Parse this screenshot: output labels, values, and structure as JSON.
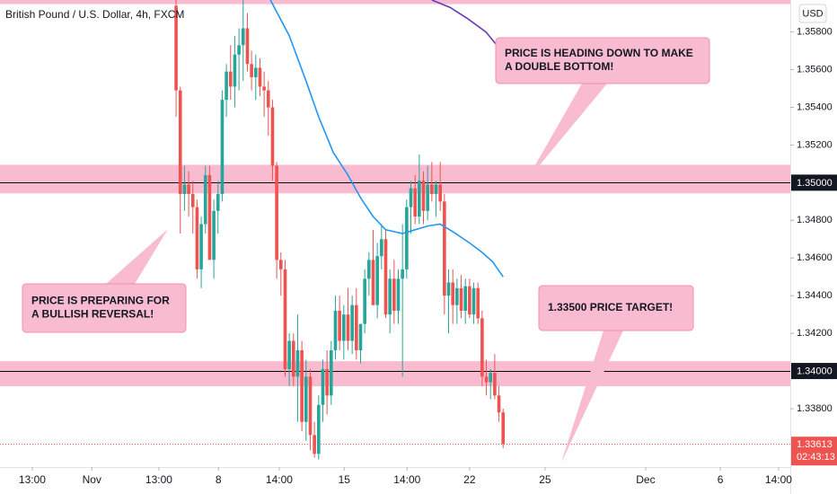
{
  "chart_data": {
    "type": "candlestick",
    "title": "British Pound / U.S. Dollar, 4h, FXCM",
    "currency": "USD",
    "x": [
      0,
      1,
      2,
      3,
      4,
      5,
      6,
      7,
      8,
      9,
      10,
      11,
      12,
      13,
      14,
      15,
      16,
      17,
      18,
      19,
      20,
      21,
      22,
      23,
      24,
      25,
      26,
      27,
      28,
      29,
      30,
      31,
      32,
      33,
      34,
      35,
      36,
      37,
      38,
      39,
      40,
      41,
      42,
      43,
      44,
      45,
      46,
      47,
      48,
      49,
      50,
      51,
      52,
      53,
      54,
      55,
      56,
      57,
      58,
      59,
      60,
      61,
      62,
      63,
      64,
      65,
      66,
      67,
      68,
      69,
      70,
      71,
      72,
      73,
      74,
      75,
      76,
      77,
      78
    ],
    "open": [
      1.3594,
      1.3549,
      1.3494,
      1.3499,
      1.3494,
      1.3487,
      1.3454,
      1.3478,
      1.3504,
      1.3459,
      1.3485,
      1.3494,
      1.3544,
      1.3559,
      1.3551,
      1.3568,
      1.3573,
      1.3582,
      1.3563,
      1.3556,
      1.3561,
      1.3551,
      1.3549,
      1.354,
      1.3509,
      1.3459,
      1.3454,
      1.3401,
      1.3416,
      1.3397,
      1.3411,
      1.3373,
      1.3397,
      1.3366,
      1.3356,
      1.3382,
      1.3401,
      1.3387,
      1.3411,
      1.3432,
      1.3416,
      1.343,
      1.3416,
      1.3435,
      1.3411,
      1.3425,
      1.3449,
      1.3459,
      1.3435,
      1.3461,
      1.347,
      1.343,
      1.3449,
      1.3432,
      1.3449,
      1.3454,
      1.3487,
      1.3497,
      1.3482,
      1.3501,
      1.3485,
      1.3499,
      1.3494,
      1.3499,
      1.349,
      1.344,
      1.3447,
      1.3435,
      1.3444,
      1.3432,
      1.3445,
      1.343,
      1.3444,
      1.3428,
      1.3397,
      1.3394,
      1.3399,
      1.3387,
      1.3378
    ],
    "high": [
      1.3597,
      1.3551,
      1.3509,
      1.3506,
      1.3501,
      1.3491,
      1.3482,
      1.3509,
      1.3509,
      1.3491,
      1.3501,
      1.3549,
      1.3563,
      1.3573,
      1.3578,
      1.3582,
      1.3597,
      1.359,
      1.357,
      1.3568,
      1.3566,
      1.3559,
      1.3554,
      1.3544,
      1.3511,
      1.3463,
      1.3459,
      1.342,
      1.342,
      1.343,
      1.3416,
      1.3406,
      1.3401,
      1.3373,
      1.3387,
      1.3406,
      1.3411,
      1.3416,
      1.344,
      1.344,
      1.3435,
      1.3444,
      1.344,
      1.3444,
      1.3425,
      1.3454,
      1.3463,
      1.3475,
      1.3468,
      1.3478,
      1.3475,
      1.3454,
      1.3459,
      1.3454,
      1.3478,
      1.3491,
      1.3501,
      1.3504,
      1.3515,
      1.3506,
      1.3509,
      1.3511,
      1.3501,
      1.3511,
      1.3494,
      1.3454,
      1.3454,
      1.3449,
      1.3451,
      1.3449,
      1.3449,
      1.3447,
      1.3447,
      1.3432,
      1.3406,
      1.3401,
      1.3409,
      1.3392,
      1.338
    ],
    "low": [
      1.3535,
      1.3473,
      1.3485,
      1.3482,
      1.3473,
      1.3449,
      1.3444,
      1.3473,
      1.3459,
      1.3449,
      1.3473,
      1.349,
      1.3535,
      1.3544,
      1.354,
      1.3549,
      1.3554,
      1.3559,
      1.3549,
      1.3544,
      1.3546,
      1.3535,
      1.3525,
      1.3501,
      1.3449,
      1.344,
      1.3397,
      1.3392,
      1.3392,
      1.3373,
      1.3368,
      1.3363,
      1.3358,
      1.3354,
      1.3353,
      1.3373,
      1.3377,
      1.3382,
      1.3406,
      1.3411,
      1.3406,
      1.3411,
      1.3409,
      1.3406,
      1.3404,
      1.342,
      1.344,
      1.3435,
      1.3428,
      1.3454,
      1.3428,
      1.342,
      1.3425,
      1.3425,
      1.3397,
      1.3449,
      1.3473,
      1.3478,
      1.3478,
      1.3478,
      1.348,
      1.349,
      1.3482,
      1.3485,
      1.343,
      1.342,
      1.3425,
      1.3425,
      1.3428,
      1.3425,
      1.3428,
      1.3425,
      1.3425,
      1.3392,
      1.3387,
      1.3385,
      1.3385,
      1.3373,
      1.3359
    ],
    "close": [
      1.3549,
      1.3494,
      1.3499,
      1.3494,
      1.3487,
      1.3454,
      1.3478,
      1.3504,
      1.3459,
      1.3485,
      1.3494,
      1.3544,
      1.3559,
      1.3551,
      1.3568,
      1.3573,
      1.3582,
      1.3563,
      1.3556,
      1.3561,
      1.3551,
      1.3549,
      1.354,
      1.3509,
      1.3459,
      1.3454,
      1.3401,
      1.3416,
      1.3397,
      1.3411,
      1.3373,
      1.3397,
      1.3366,
      1.3356,
      1.3382,
      1.3401,
      1.3387,
      1.3411,
      1.3432,
      1.3416,
      1.343,
      1.3416,
      1.3435,
      1.3411,
      1.3425,
      1.3449,
      1.3459,
      1.3435,
      1.3461,
      1.347,
      1.343,
      1.3449,
      1.3432,
      1.3449,
      1.3454,
      1.3487,
      1.3497,
      1.3482,
      1.3501,
      1.3485,
      1.3499,
      1.3494,
      1.3499,
      1.349,
      1.344,
      1.3447,
      1.3435,
      1.3444,
      1.3432,
      1.3445,
      1.343,
      1.3444,
      1.3428,
      1.3397,
      1.3394,
      1.3399,
      1.3387,
      1.3378,
      1.33613
    ],
    "up_color": "#26a69a",
    "down_color": "#ef5350",
    "lines": [
      {
        "color": "#2196f3",
        "x": [
          22.5,
          27,
          31,
          34,
          37.5,
          41,
          44,
          47,
          50,
          54,
          57,
          60,
          63,
          66,
          70,
          73,
          75.5,
          78
        ],
        "values": [
          1.3597,
          1.3578,
          1.3554,
          1.3535,
          1.3516,
          1.3504,
          1.3492,
          1.3482,
          1.3475,
          1.3473,
          1.3475,
          1.3477,
          1.3478,
          1.3474,
          1.3468,
          1.3463,
          1.3458,
          1.345
        ]
      },
      {
        "color": "#673ab7",
        "x": [
          61,
          65.4,
          69.6,
          73.9,
          76.5
        ],
        "values": [
          1.3597,
          1.3593,
          1.3587,
          1.358,
          1.3573
        ]
      }
    ],
    "zones": [
      [
        1.34943,
        1.35095
      ],
      [
        1.33919,
        1.34052
      ],
      [
        1.35948,
        1.3597
      ]
    ],
    "zone_color": "#f8bbd0",
    "levels": [
      {
        "value": 1.35,
        "label": "1.35000"
      },
      {
        "value": 1.34,
        "label": "1.34000"
      }
    ],
    "last_price": {
      "value": 1.33613,
      "label": "1.33613"
    },
    "countdown": "02:43:13",
    "annotations": [
      {
        "lines": [
          "PRICE IS HEADING DOWN TO MAKE",
          "A DOUBLE BOTTOM!"
        ]
      },
      {
        "lines": [
          "PRICE IS PREPARING FOR",
          "A BULLISH REVERSAL!"
        ]
      },
      {
        "lines": [
          "1.33500 PRICE TARGET!"
        ]
      }
    ],
    "xlim": [
      -42,
      146.5
    ],
    "ylim": [
      1.3349,
      1.3597
    ],
    "xticks": [
      {
        "value": -34.3,
        "label": "13:00"
      },
      {
        "value": -20.1,
        "label": "Nov"
      },
      {
        "value": -4.1,
        "label": "13:00"
      },
      {
        "value": 10.1,
        "label": "8"
      },
      {
        "value": 24.6,
        "label": "14:00"
      },
      {
        "value": 40.1,
        "label": "15"
      },
      {
        "value": 55.1,
        "label": "14:00"
      },
      {
        "value": 70,
        "label": "22"
      },
      {
        "value": 88,
        "label": "25"
      },
      {
        "value": 112,
        "label": "Dec"
      },
      {
        "value": 129.8,
        "label": "6"
      },
      {
        "value": 143.7,
        "label": "14:00"
      }
    ],
    "yticks": [
      {
        "value": 1.358,
        "label": "1.35800"
      },
      {
        "value": 1.356,
        "label": "1.35600"
      },
      {
        "value": 1.354,
        "label": "1.35400"
      },
      {
        "value": 1.352,
        "label": "1.35200"
      },
      {
        "value": 1.348,
        "label": "1.34800"
      },
      {
        "value": 1.346,
        "label": "1.34600"
      },
      {
        "value": 1.344,
        "label": "1.34400"
      },
      {
        "value": 1.342,
        "label": "1.34200"
      },
      {
        "value": 1.338,
        "label": "1.33800"
      }
    ],
    "grid": false
  }
}
